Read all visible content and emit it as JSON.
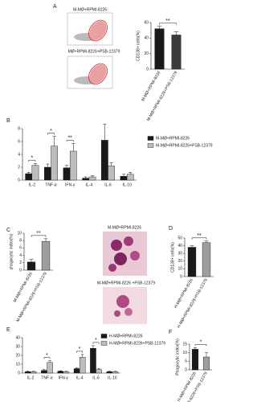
{
  "chart_data": [
    {
      "type": "bar",
      "panel_label": "A",
      "ylabel": "CD138+ cells(%)",
      "categories": [
        "M-MØ+RPMI-8226",
        "M-MØ+RPMI-8226+PSB-12379"
      ],
      "values": [
        52,
        44
      ],
      "errors": [
        3,
        4
      ],
      "colors": [
        "#1a1a1a",
        "#3a3a3a"
      ],
      "ylim": [
        0,
        60
      ],
      "yticks": [
        0,
        20,
        40,
        60
      ],
      "significance": "**"
    },
    {
      "type": "grouped_bar",
      "panel_label": "B",
      "categories": [
        "IL-2",
        "TNF-α",
        "IFN-γ",
        "IL-4",
        "IL-6",
        "IL-10"
      ],
      "series": [
        {
          "name": "M-MØ+RPMI-8226",
          "color": "#1a1a1a",
          "values": [
            1.0,
            2.0,
            1.9,
            0.3,
            6.2,
            0.6
          ],
          "errors": [
            0.2,
            0.5,
            0.4,
            0.2,
            2.5,
            0.3
          ]
        },
        {
          "name": "M-MØ+RPMI-8226+PSB-12379",
          "color": "#bdbdbd",
          "values": [
            2.3,
            5.3,
            4.5,
            0.5,
            2.2,
            0.9
          ],
          "errors": [
            0.3,
            1.5,
            1.2,
            0.2,
            0.5,
            0.3
          ]
        }
      ],
      "ylim": [
        0,
        8
      ],
      "yticks": [
        0,
        2,
        4,
        6,
        8
      ],
      "significance": [
        "*",
        "*",
        "**",
        null,
        null,
        null
      ]
    },
    {
      "type": "bar",
      "panel_label": "C",
      "ylabel": "phagocytic index(%)",
      "categories": [
        "M-MØ+RPMI-8226",
        "M-MØ+RPMI-8226+PSB-12379"
      ],
      "values": [
        2.2,
        7.8
      ],
      "errors": [
        0.7,
        0.7
      ],
      "colors": [
        "#1a1a1a",
        "#9e9e9e"
      ],
      "ylim": [
        0,
        10
      ],
      "yticks": [
        0,
        2,
        4,
        6,
        8,
        10
      ],
      "significance": "**"
    },
    {
      "type": "bar",
      "panel_label": "D",
      "ylabel": "CD138+ cells(%)",
      "categories": [
        "H-MØ+RPMI-8226",
        "H-MØ+RPMI-8226+PSB-12379"
      ],
      "values": [
        38,
        44
      ],
      "errors": [
        2,
        2
      ],
      "colors": [
        "#1a1a1a",
        "#9e9e9e"
      ],
      "ylim": [
        0,
        50
      ],
      "yticks": [
        0,
        10,
        20,
        30,
        40,
        50
      ],
      "significance": "**"
    },
    {
      "type": "grouped_bar",
      "panel_label": "E",
      "categories": [
        "IL-2",
        "TNF-α",
        "IFN-γ",
        "IL-4",
        "IL-6",
        "IL-10"
      ],
      "series": [
        {
          "name": "H-MØ+RPMI-8226",
          "color": "#1a1a1a",
          "values": [
            1.5,
            3,
            2,
            5,
            28,
            1.5
          ],
          "errors": [
            0.5,
            1,
            0.5,
            1,
            3,
            0.5
          ]
        },
        {
          "name": "H-MØ+RPMI-8226+PSB-12379",
          "color": "#bdbdbd",
          "values": [
            1.5,
            12,
            1.5,
            18,
            4,
            1.5
          ],
          "errors": [
            0.5,
            2,
            0.5,
            3,
            1,
            0.5
          ]
        }
      ],
      "ylim": [
        0,
        40
      ],
      "yticks": [
        0,
        10,
        20,
        30,
        40
      ],
      "significance": [
        null,
        "*",
        null,
        "*",
        "*",
        null
      ]
    },
    {
      "type": "bar",
      "panel_label": "F",
      "ylabel": "Phagocytic index(%)",
      "categories": [
        "H-MØ+RPMI-8226",
        "H-MØ+RPMI-8226+PSB-12379"
      ],
      "values": [
        12,
        7.5
      ],
      "errors": [
        1,
        2.5
      ],
      "colors": [
        "#1a1a1a",
        "#9e9e9e"
      ],
      "ylim": [
        0,
        15
      ],
      "yticks": [
        0,
        5,
        10,
        15
      ],
      "significance": "*"
    }
  ],
  "figure_images": {
    "flow": [
      "M-MØ+RPMI-8226",
      "MØ+RPMI-8226+PSB-12379"
    ],
    "microscopy": [
      "M-MØ+RPMI-8226",
      "M-MØ+RPMI-8226 +PSB-12379"
    ]
  }
}
